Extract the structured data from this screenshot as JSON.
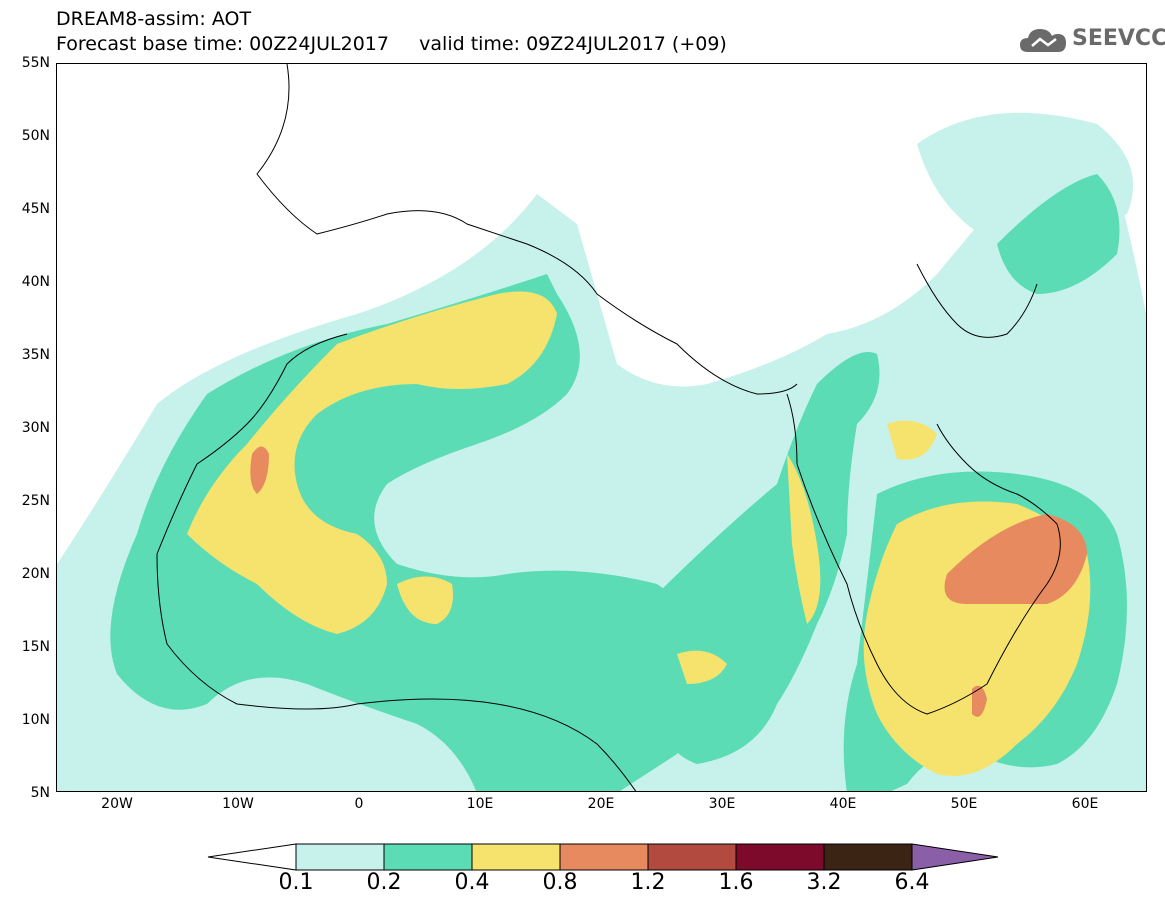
{
  "header": {
    "line1": "DREAM8-assim: AOT",
    "line2": "Forecast base time: 00Z24JUL2017     valid time: 09Z24JUL2017 (+09)"
  },
  "logo": {
    "text": "SEEVCCC",
    "icon": "cloud-icon",
    "color": "#6a6a6a"
  },
  "map": {
    "lat_range": [
      5,
      55
    ],
    "lon_range": [
      -25,
      65
    ],
    "lat_labels": [
      "55N",
      "50N",
      "45N",
      "40N",
      "35N",
      "30N",
      "25N",
      "20N",
      "15N",
      "10N",
      "5N"
    ],
    "lon_labels": [
      "20W",
      "10W",
      "0",
      "10E",
      "20E",
      "30E",
      "40E",
      "50E",
      "60E"
    ]
  },
  "colorbar": {
    "labels": [
      "0.1",
      "0.2",
      "0.4",
      "0.8",
      "1.2",
      "1.6",
      "3.2",
      "6.4"
    ],
    "colors": [
      "#c7f2ec",
      "#5bdcb4",
      "#f6e36e",
      "#e88a60",
      "#b24a40",
      "#7d0a2a",
      "#3c2414"
    ],
    "under_color": "#ffffff",
    "over_color": "#8a5fa8"
  }
}
